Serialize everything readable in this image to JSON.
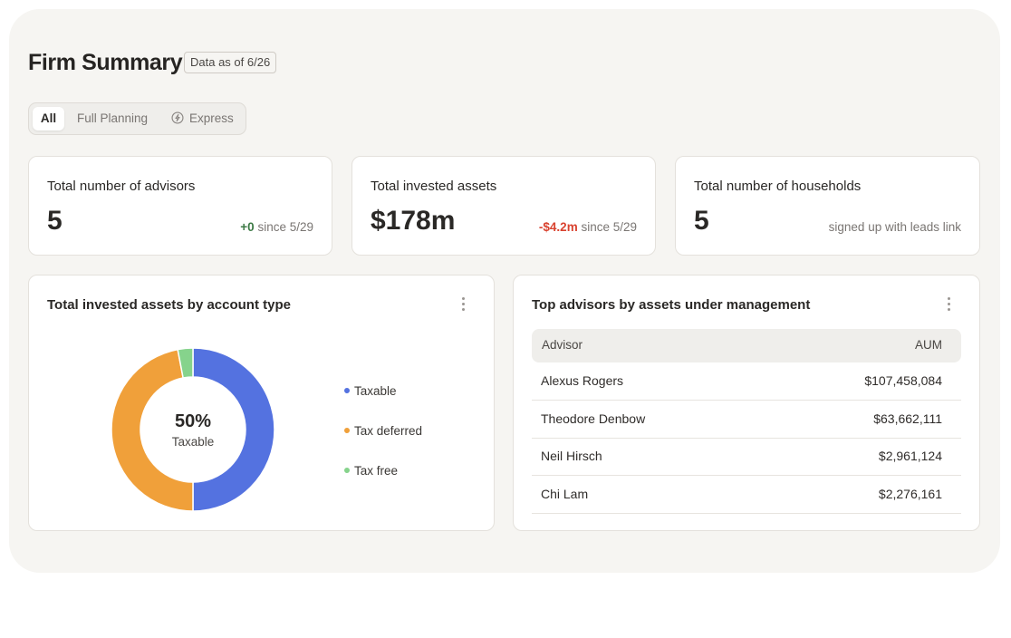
{
  "header": {
    "title": "Firm Summary",
    "date_badge": "Data as of 6/26"
  },
  "filter_tabs": [
    {
      "label": "All",
      "active": true
    },
    {
      "label": "Full Planning",
      "active": false
    },
    {
      "label": "Express",
      "active": false,
      "icon": "lightning-icon"
    }
  ],
  "stats": [
    {
      "label": "Total number of advisors",
      "value": "5",
      "delta": "+0",
      "delta_suffix": " since 5/29",
      "delta_color": "#3d7a46"
    },
    {
      "label": "Total invested assets",
      "value": "$178m",
      "delta": "-$4.2m",
      "delta_suffix": " since 5/29",
      "delta_color": "#d9422f"
    },
    {
      "label": "Total number of households",
      "value": "5",
      "note": "signed up with leads link"
    }
  ],
  "account_type_card": {
    "title": "Total invested assets by account type",
    "center_value": "50%",
    "center_label": "Taxable",
    "chart_data": {
      "type": "pie",
      "categories": [
        "Taxable",
        "Tax deferred",
        "Tax free"
      ],
      "values": [
        50,
        47,
        3
      ],
      "colors": [
        "#5472e0",
        "#f0a03a",
        "#86d38c"
      ]
    }
  },
  "top_advisors_card": {
    "title": "Top advisors by assets under management",
    "columns": [
      "Advisor",
      "AUM"
    ],
    "rows": [
      {
        "name": "Alexus Rogers",
        "aum": "$107,458,084"
      },
      {
        "name": "Theodore Denbow",
        "aum": "$63,662,111"
      },
      {
        "name": "Neil Hirsch",
        "aum": "$2,961,124"
      },
      {
        "name": "Chi Lam",
        "aum": "$2,276,161"
      }
    ]
  }
}
